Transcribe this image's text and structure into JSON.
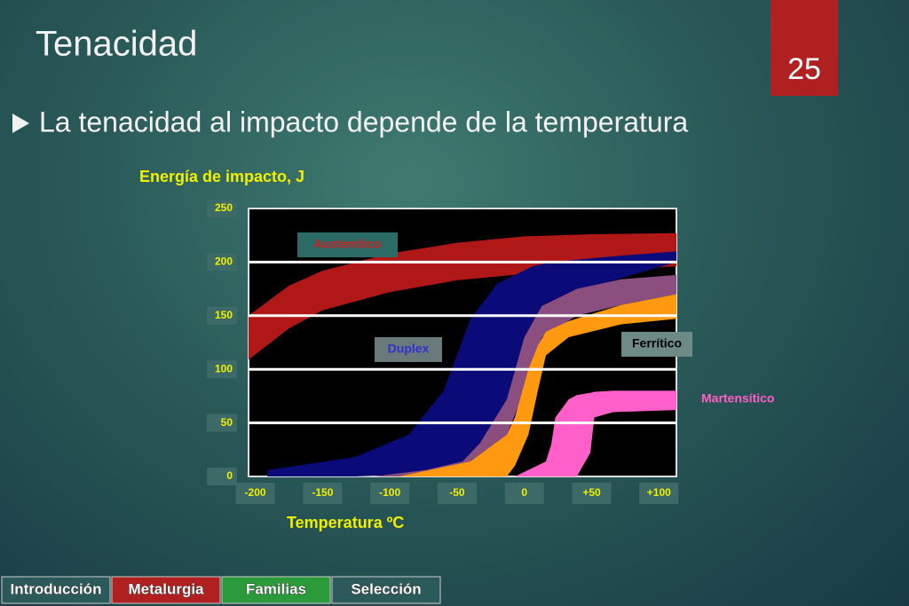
{
  "slide": {
    "title": "Tenacidad",
    "page_number": "25",
    "bullet": "La tenacidad al impacto depende de la temperatura",
    "nav": [
      "Introducción",
      "Metalurgia",
      "Familias",
      "Selección"
    ]
  },
  "chart_data": {
    "type": "band",
    "ylabel": "Energía de impacto, J",
    "xlabel": "Temperatura ºC",
    "xlim": [
      -205,
      113
    ],
    "ylim": [
      0,
      250
    ],
    "xticks": [
      -200,
      -150,
      -100,
      -50,
      0,
      {
        "value": 50,
        "label": "+50"
      },
      {
        "value": 100,
        "label": "+100"
      }
    ],
    "yticks": [
      0,
      50,
      100,
      150,
      200,
      250
    ],
    "grid": true,
    "series": [
      {
        "name": "Austenítico",
        "color": "#b01818",
        "x": [
          -205,
          -175,
          -150,
          -100,
          -50,
          0,
          50,
          113
        ],
        "upper": [
          150,
          178,
          192,
          208,
          218,
          224,
          226,
          227
        ],
        "lower": [
          109,
          138,
          155,
          172,
          183,
          189,
          193,
          196
        ]
      },
      {
        "name": "Duplex",
        "color": "#0a0a78",
        "x": [
          -191,
          -126,
          -86,
          -60,
          -40,
          -20,
          -7,
          6,
          20,
          46,
          72,
          113
        ],
        "upper": [
          6,
          18,
          39,
          80,
          147,
          180,
          188,
          196,
          200,
          203,
          206,
          210
        ],
        "lower": [
          0,
          0,
          2,
          3,
          6,
          18,
          39,
          97,
          155,
          175,
          185,
          200
        ]
      },
      {
        "color": "#8b4f7f",
        "x": [
          -112,
          -73,
          -46,
          -33,
          -13,
          0,
          13,
          39,
          72,
          113
        ],
        "upper": [
          0,
          6,
          14,
          31,
          72,
          130,
          159,
          175,
          184,
          188
        ],
        "lower": [
          0,
          0,
          0,
          14,
          39,
          80,
          130,
          150,
          160,
          170
        ]
      },
      {
        "name": "Ferrítico",
        "color": "#ff9a10",
        "x": [
          -93,
          -40,
          -13,
          -7,
          3,
          10,
          16,
          33,
          72,
          113
        ],
        "upper": [
          0,
          14,
          39,
          55,
          100,
          122,
          135,
          145,
          160,
          170
        ],
        "lower": [
          0,
          0,
          0,
          10,
          39,
          80,
          113,
          130,
          142,
          147
        ]
      },
      {
        "name": "Martensítico",
        "color": "#ff5fc8",
        "x": [
          -7,
          16,
          20,
          23,
          33,
          39,
          49,
          52,
          66,
          113
        ],
        "upper": [
          0,
          14,
          30,
          55,
          72,
          76,
          78,
          79,
          80,
          80
        ],
        "lower": [
          0,
          0,
          0,
          0,
          0,
          0,
          22,
          55,
          60,
          62
        ]
      }
    ]
  }
}
